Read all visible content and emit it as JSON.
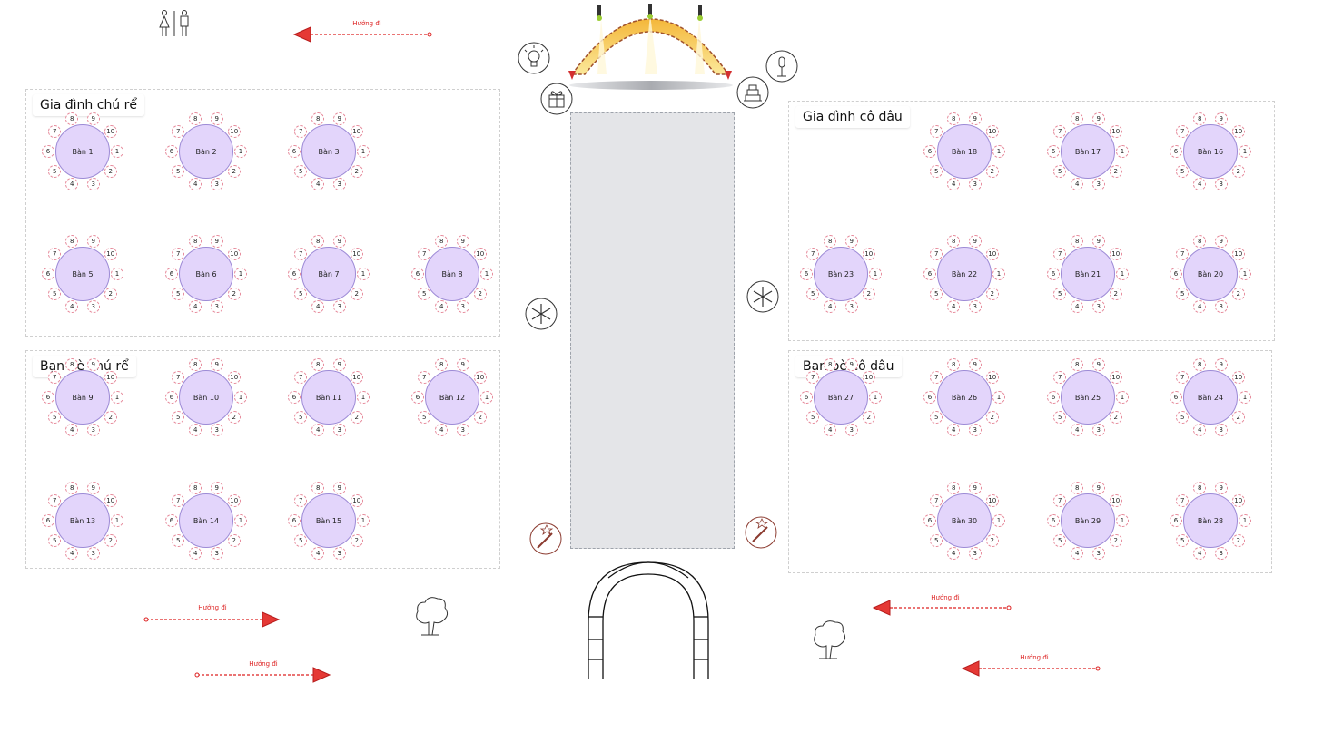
{
  "sections": [
    {
      "id": "groom-family",
      "label": "Gia đình chú rể"
    },
    {
      "id": "groom-friends",
      "label": "Bạn bè chú rể"
    },
    {
      "id": "bride-family",
      "label": "Gia đình cô dâu"
    },
    {
      "id": "bride-friends",
      "label": "Bạn bè cô dâu"
    }
  ],
  "tables": [
    {
      "label": "Bàn 1"
    },
    {
      "label": "Bàn 2"
    },
    {
      "label": "Bàn 3"
    },
    {
      "label": "Bàn 5"
    },
    {
      "label": "Bàn 6"
    },
    {
      "label": "Bàn 7"
    },
    {
      "label": "Bàn 8"
    },
    {
      "label": "Bàn 9"
    },
    {
      "label": "Bàn 10"
    },
    {
      "label": "Bàn 11"
    },
    {
      "label": "Bàn 12"
    },
    {
      "label": "Bàn 13"
    },
    {
      "label": "Bàn 14"
    },
    {
      "label": "Bàn 15"
    },
    {
      "label": "Bàn 18"
    },
    {
      "label": "Bàn 17"
    },
    {
      "label": "Bàn 16"
    },
    {
      "label": "Bàn 23"
    },
    {
      "label": "Bàn 22"
    },
    {
      "label": "Bàn 21"
    },
    {
      "label": "Bàn 20"
    },
    {
      "label": "Bàn 27"
    },
    {
      "label": "Bàn 26"
    },
    {
      "label": "Bàn 25"
    },
    {
      "label": "Bàn 24"
    },
    {
      "label": "Bàn 30"
    },
    {
      "label": "Bàn 29"
    },
    {
      "label": "Bàn 28"
    }
  ],
  "seat_numbers": [
    "1",
    "2",
    "3",
    "4",
    "5",
    "6",
    "7",
    "8",
    "9",
    "10"
  ],
  "direction_label": "Hướng đi",
  "icons": [
    "restroom-icon",
    "lightbulb-icon",
    "gift-icon",
    "microphone-icon",
    "cake-icon",
    "snowflake-icon",
    "firework-icon",
    "tree-icon",
    "arch-icon",
    "stage-icon"
  ],
  "colors": {
    "table_fill": "#e3d5fb",
    "table_border": "#9d8ad6",
    "seat_border": "#e6899a",
    "arrow": "#d22222",
    "aisle": "#e4e5e8",
    "stage": "#f7c948"
  }
}
